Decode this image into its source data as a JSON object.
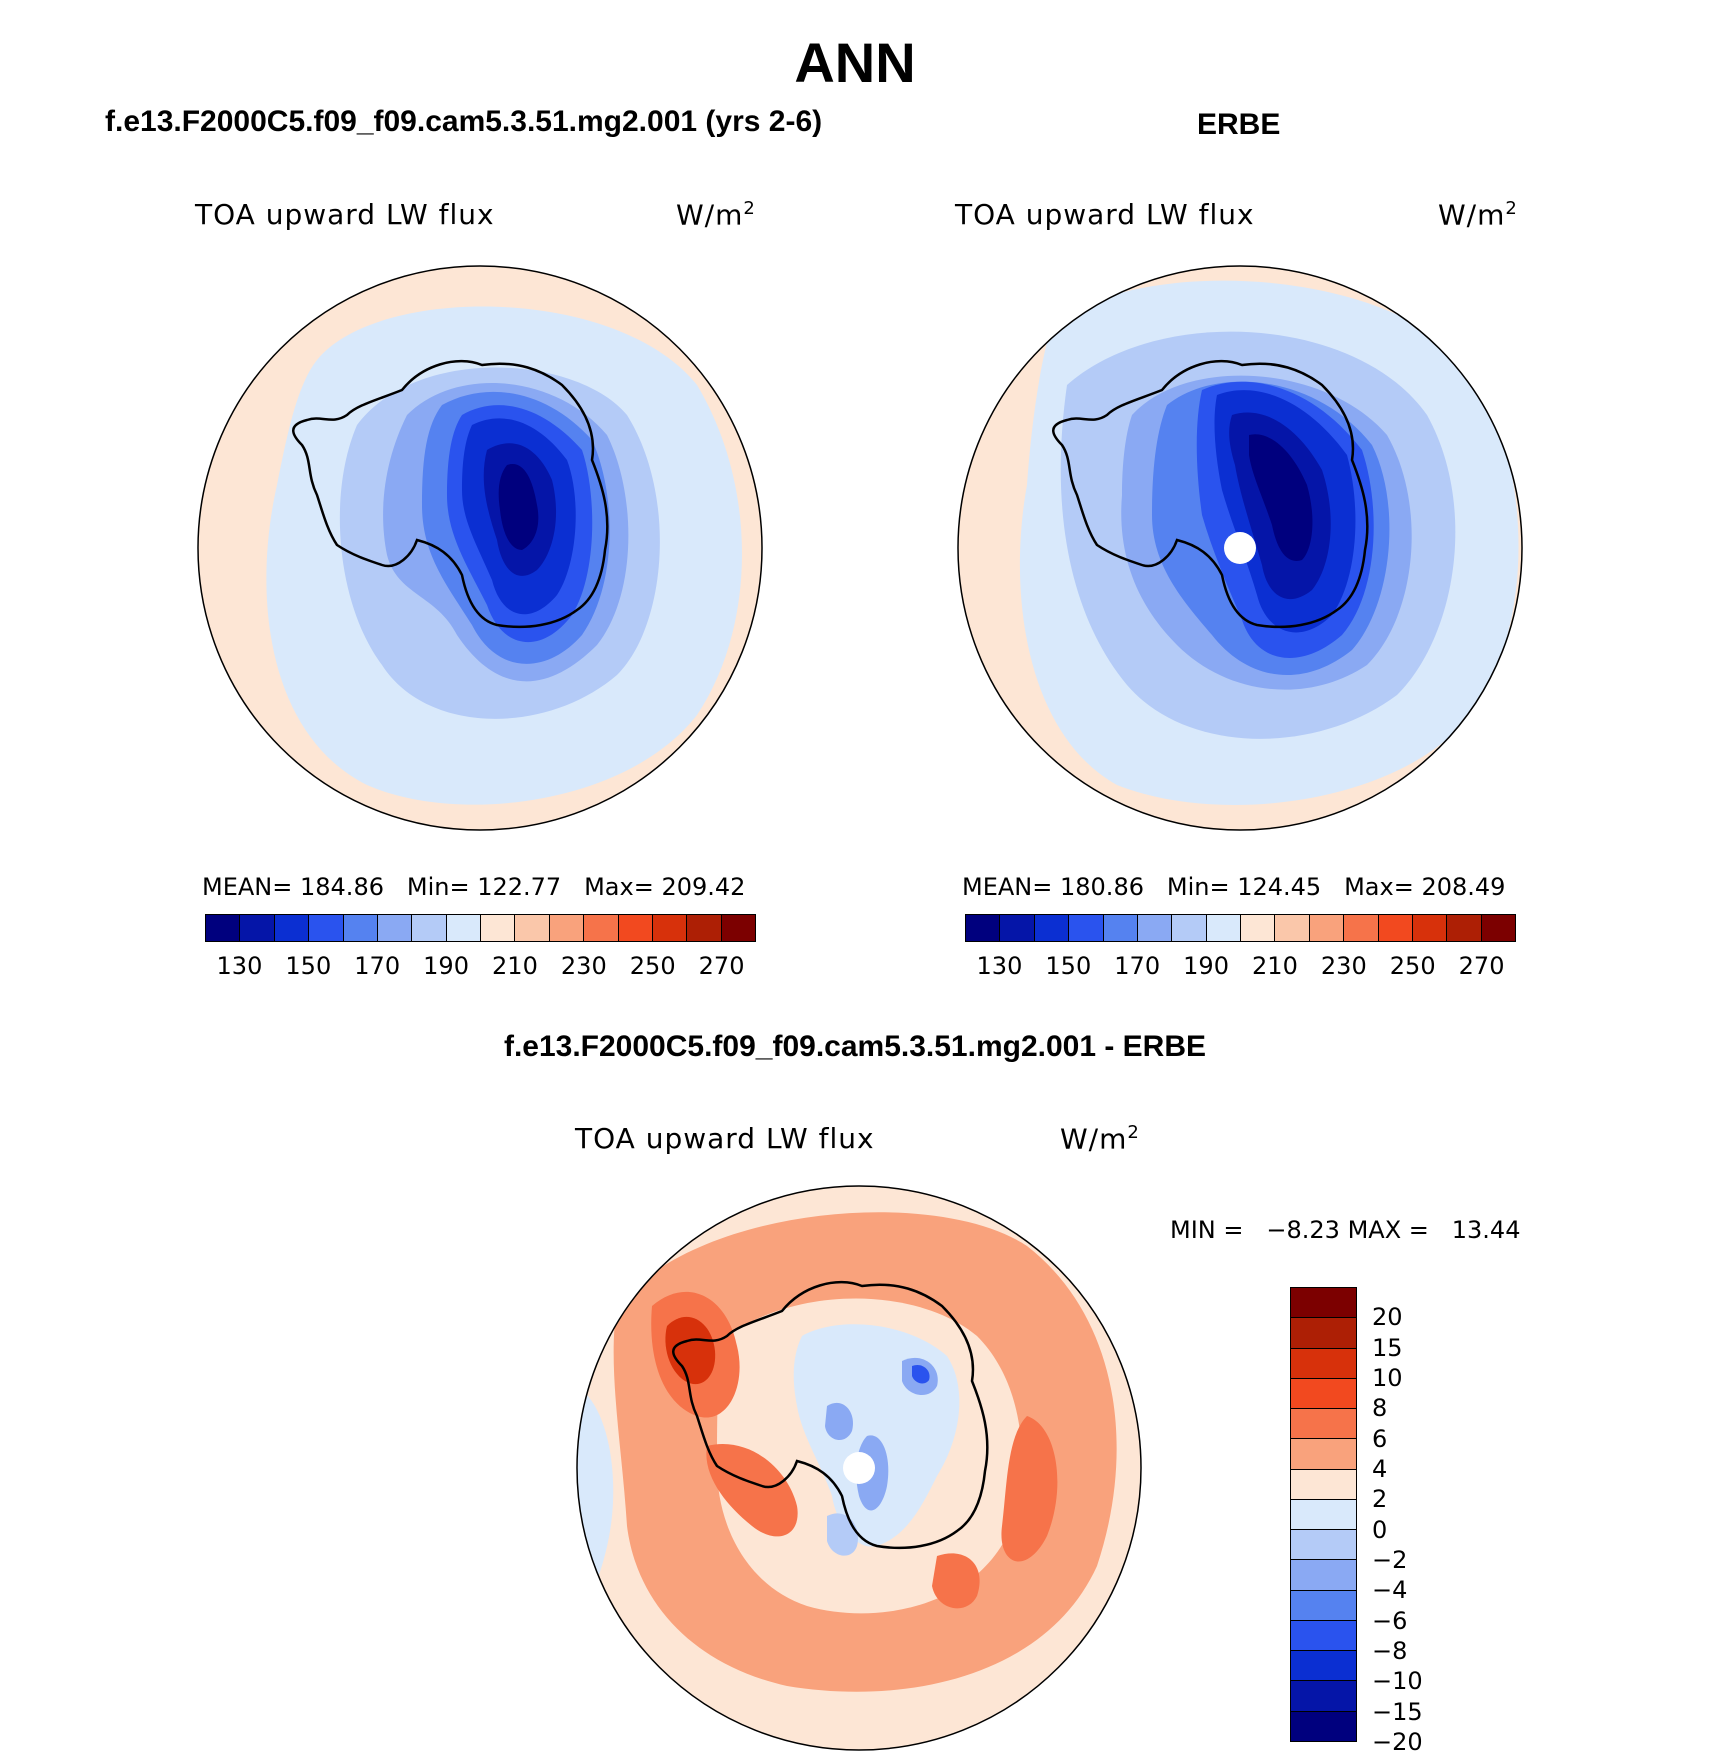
{
  "title": "ANN",
  "panels": {
    "left": {
      "case": "f.e13.F2000C5.f09_f09.cam5.3.51.mg2.001 (yrs 2-6)",
      "variable": "TOA upward LW flux",
      "units": "W/m",
      "units_exp": "2",
      "mean_label": "MEAN=",
      "mean": "184.86",
      "min_label": "Min=",
      "min": "122.77",
      "max_label": "Max=",
      "max": "209.42"
    },
    "right": {
      "case": "ERBE",
      "variable": "TOA upward LW flux",
      "units": "W/m",
      "units_exp": "2",
      "mean_label": "MEAN=",
      "mean": "180.86",
      "min_label": "Min=",
      "min": "124.45",
      "max_label": "Max=",
      "max": "208.49"
    },
    "diff": {
      "case": "f.e13.F2000C5.f09_f09.cam5.3.51.mg2.001 - ERBE",
      "variable": "TOA upward LW flux",
      "units": "W/m",
      "units_exp": "2",
      "min_label": "MIN =",
      "min": "−8.23",
      "max_label": "MAX =",
      "max": "13.44"
    }
  },
  "colorbar_abs": {
    "colors": [
      "#00007e",
      "#0515a8",
      "#0b2fd2",
      "#2a53ee",
      "#5582f0",
      "#8aa9f3",
      "#b4cbf7",
      "#d9e9fb",
      "#fde6d5",
      "#fac7aa",
      "#f9a27c",
      "#f6734a",
      "#f2491f",
      "#d7310b",
      "#ad1f05",
      "#7c0000"
    ],
    "ticks": [
      "130",
      "150",
      "170",
      "190",
      "210",
      "230",
      "250",
      "270"
    ]
  },
  "colorbar_diff": {
    "colors": [
      "#7c0000",
      "#ad1f05",
      "#d7310b",
      "#f2491f",
      "#f6734a",
      "#f9a27c",
      "#fde6d5",
      "#d9e9fb",
      "#b4cbf7",
      "#8aa9f3",
      "#5582f0",
      "#2a53ee",
      "#0b2fd2",
      "#0515a8",
      "#00007e"
    ],
    "ticks": [
      "20",
      "15",
      "10",
      "8",
      "6",
      "4",
      "2",
      "0",
      "−2",
      "−4",
      "−6",
      "−8",
      "−10",
      "−15",
      "−20"
    ]
  }
}
